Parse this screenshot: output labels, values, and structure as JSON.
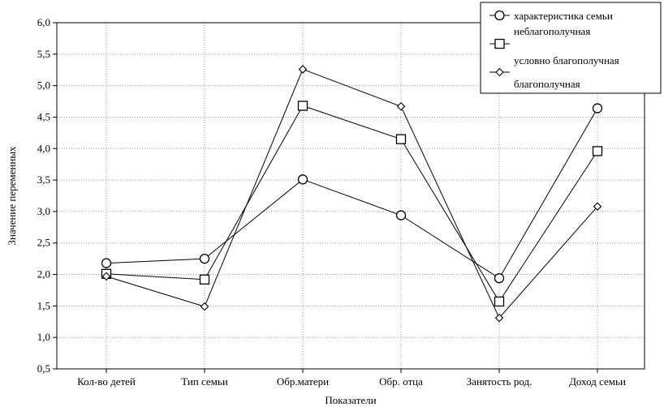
{
  "chart_data": {
    "type": "line",
    "title": "",
    "xlabel": "Показатели",
    "ylabel": "Значение переменных",
    "ylim": [
      0.5,
      6.0
    ],
    "ytick_step": 0.5,
    "ytick_labels": [
      "0,5",
      "1,0",
      "1,5",
      "2,0",
      "2,5",
      "3,0",
      "3,5",
      "4,0",
      "4,5",
      "5,0",
      "5,5",
      "6,0"
    ],
    "grid": true,
    "legend_position": "top-right",
    "legend_header": "характеристика семьи",
    "categories": [
      "Кол-во детей",
      "Тип семьи",
      "Обр.матери",
      "Обр. отца",
      "Занятость род.",
      "Доход семьи"
    ],
    "series": [
      {
        "name": "неблагополучная",
        "marker": "circle",
        "values": [
          2.18,
          2.25,
          3.51,
          2.94,
          1.94,
          4.64
        ]
      },
      {
        "name": "условно благополучная",
        "marker": "square",
        "values": [
          2.01,
          1.92,
          4.68,
          4.15,
          1.57,
          3.96
        ]
      },
      {
        "name": "благополучная",
        "marker": "diamond",
        "values": [
          1.97,
          1.49,
          5.26,
          4.67,
          1.31,
          3.08
        ]
      }
    ],
    "colors": {
      "line": "#000000",
      "grid": "#9a9a9a",
      "background": "#ffffff"
    }
  }
}
